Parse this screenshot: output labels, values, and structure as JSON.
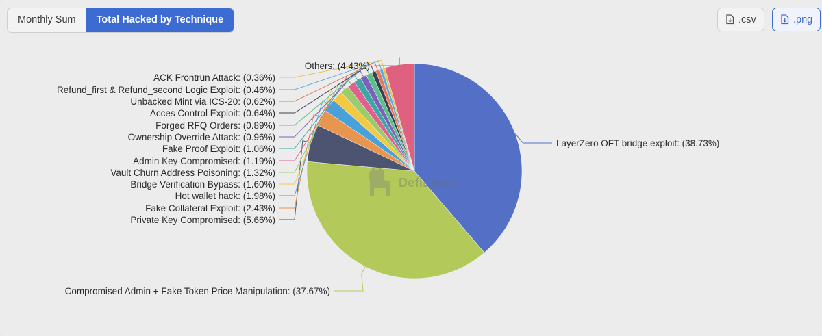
{
  "tabs": [
    {
      "label": "Monthly Sum",
      "active": false
    },
    {
      "label": "Total Hacked by Technique",
      "active": true
    }
  ],
  "downloads": {
    "csv_label": ".csv",
    "png_label": ".png",
    "csv_icon": "file-download-icon",
    "png_icon": "file-download-icon"
  },
  "watermark": {
    "text": "DefiLlama",
    "icon": "llama-logo"
  },
  "chart_data": {
    "type": "pie",
    "title": "",
    "start_angle_deg": 0,
    "direction": "clockwise",
    "slices": [
      {
        "name": "LayerZero OFT bridge exploit",
        "pct_label": "(38.73%)",
        "value": 38.73,
        "color": "#5470c6"
      },
      {
        "name": "Compromised Admin + Fake Token Price Manipulation",
        "pct_label": "(37.67%)",
        "value": 37.67,
        "color": "#b3c95a"
      },
      {
        "name": "Private Key Compromised",
        "pct_label": "(5.66%)",
        "value": 5.66,
        "color": "#4d5471"
      },
      {
        "name": "Fake Collateral Exploit",
        "pct_label": "(2.43%)",
        "value": 2.43,
        "color": "#e8954f"
      },
      {
        "name": "Hot wallet hack",
        "pct_label": "(1.98%)",
        "value": 1.98,
        "color": "#4aa0d8"
      },
      {
        "name": "Bridge Verification Bypass",
        "pct_label": "(1.60%)",
        "value": 1.6,
        "color": "#f2c940"
      },
      {
        "name": "Vault Churn Address Poisoning",
        "pct_label": "(1.32%)",
        "value": 1.32,
        "color": "#9bcb6b"
      },
      {
        "name": "Admin Key Compromised",
        "pct_label": "(1.19%)",
        "value": 1.19,
        "color": "#e05f8c"
      },
      {
        "name": "Fake Proof Exploit",
        "pct_label": "(1.06%)",
        "value": 1.06,
        "color": "#3fa6a6"
      },
      {
        "name": "Ownership Override Attack",
        "pct_label": "(0.96%)",
        "value": 0.96,
        "color": "#7a62b8"
      },
      {
        "name": "Forged RFQ Orders",
        "pct_label": "(0.89%)",
        "value": 0.89,
        "color": "#5bbf8a"
      },
      {
        "name": "Acces Control Exploit",
        "pct_label": "(0.64%)",
        "value": 0.64,
        "color": "#3a3f52"
      },
      {
        "name": "Unbacked Mint via ICS-20",
        "pct_label": "(0.62%)",
        "value": 0.62,
        "color": "#e47a5e"
      },
      {
        "name": "Refund_first & Refund_second Logic Exploit",
        "pct_label": "(0.46%)",
        "value": 0.46,
        "color": "#62a9df"
      },
      {
        "name": "ACK Frontrun Attack",
        "pct_label": "(0.36%)",
        "value": 0.36,
        "color": "#e8c64b"
      },
      {
        "name": "Others",
        "pct_label": "(4.43%)",
        "value": 4.43,
        "color": "#e0617f"
      }
    ]
  }
}
